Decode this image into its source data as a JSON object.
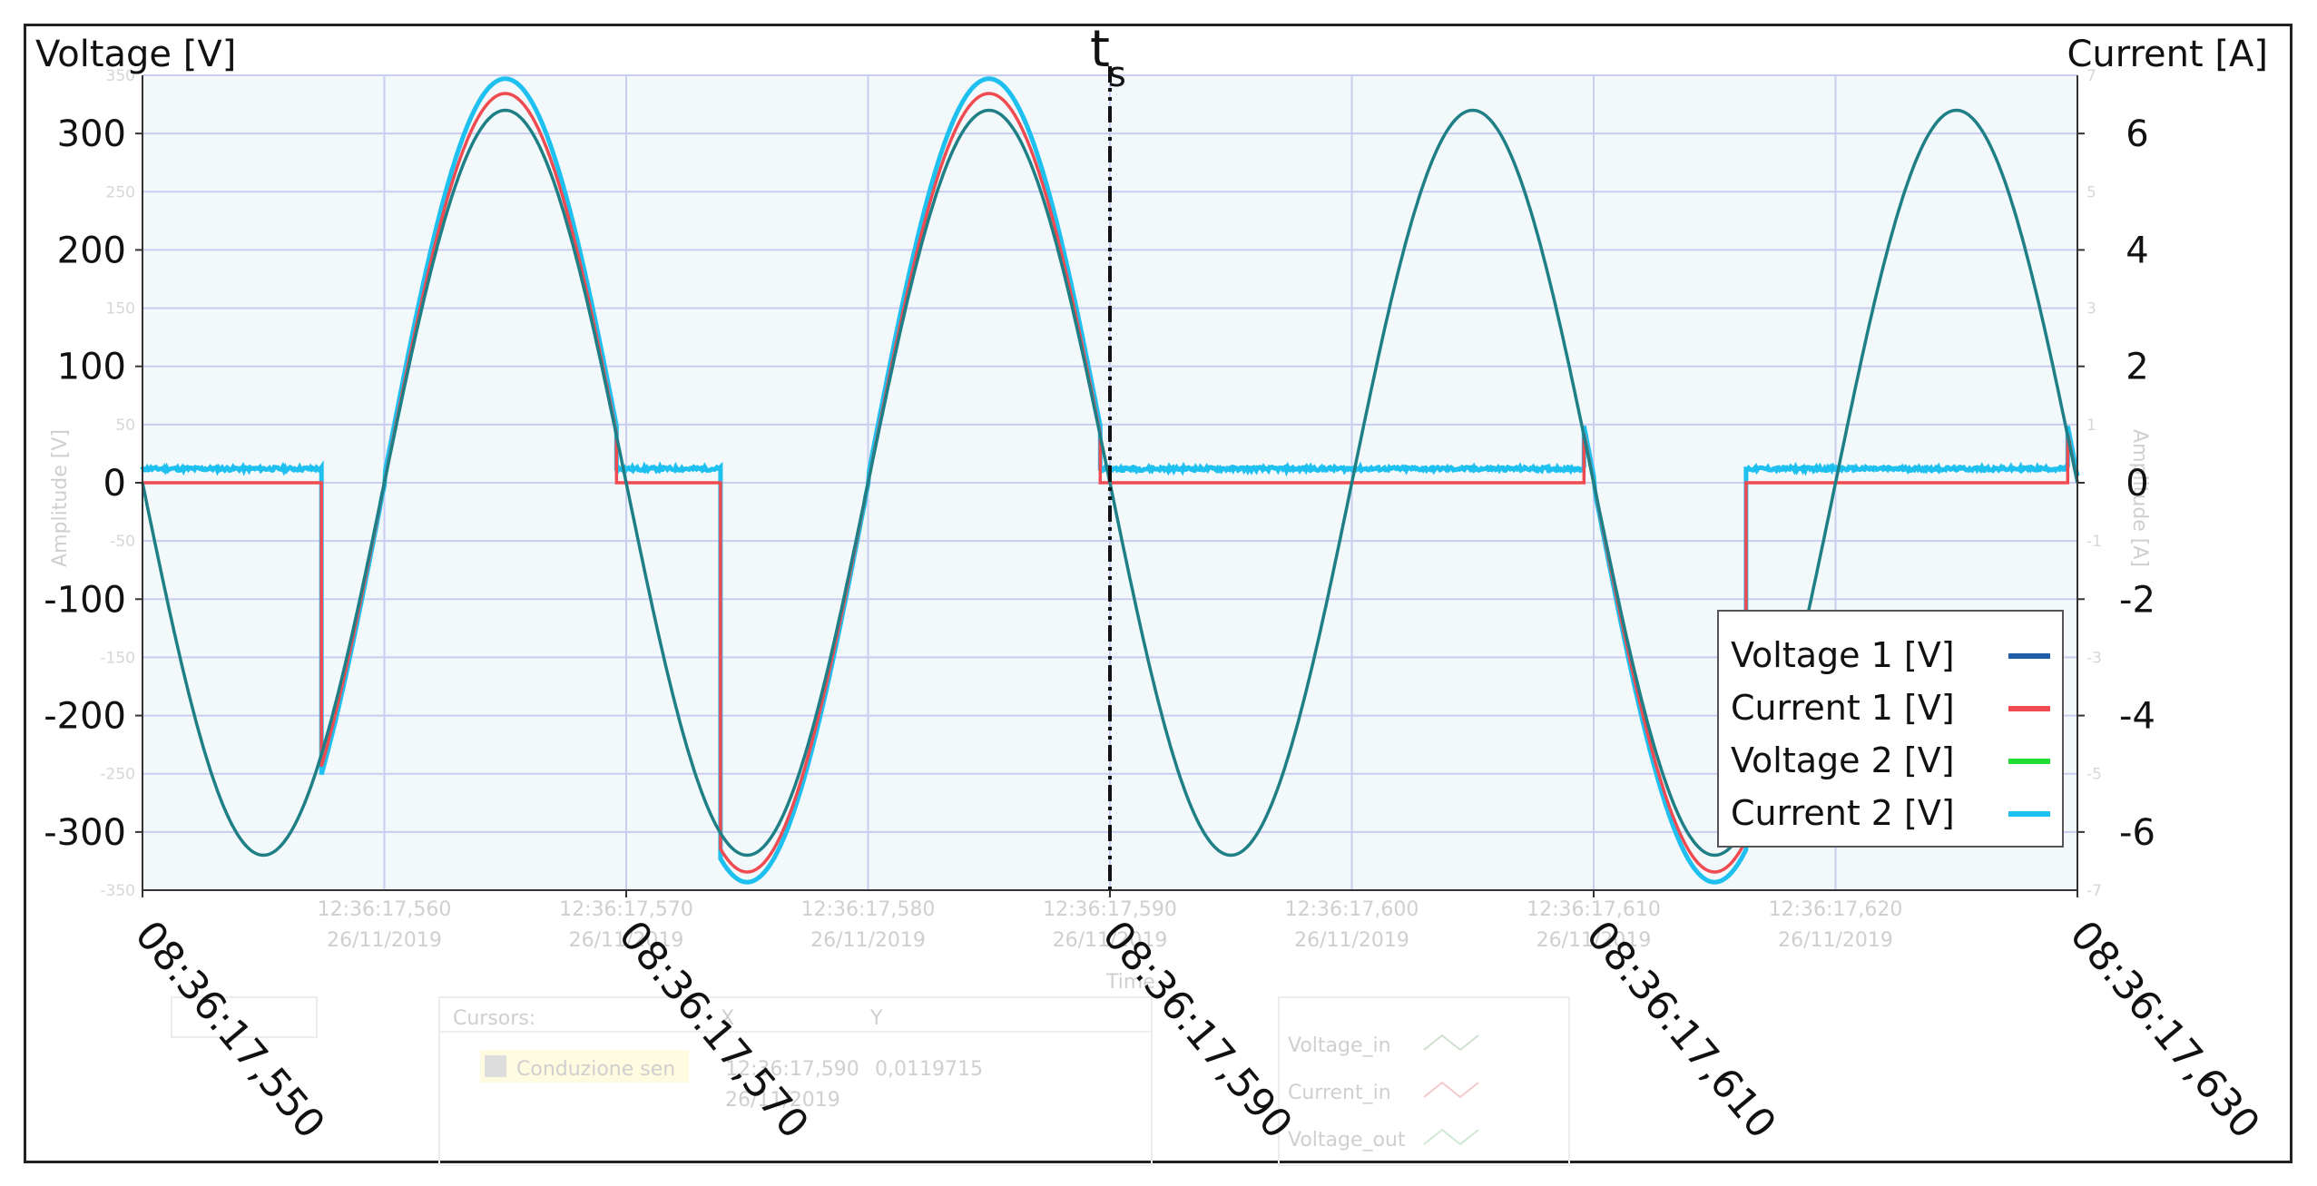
{
  "chart_data": {
    "type": "line",
    "y_left_label": "Voltage [V]",
    "y_right_label": "Current [A]",
    "y_left_ticks": [
      300,
      200,
      100,
      0,
      -100,
      -200,
      -300
    ],
    "y_left_ticks_labels": [
      "300",
      "200",
      "100",
      "0",
      "-100",
      "-200",
      "-300"
    ],
    "y_left_range": [
      -350,
      350
    ],
    "y_right_ticks_labels": [
      "6",
      "4",
      "2",
      "0",
      "-2",
      "-4",
      "-6"
    ],
    "y_right_ticks": [
      6,
      4,
      2,
      0,
      -2,
      -4,
      -6
    ],
    "y_right_range": [
      -7,
      7
    ],
    "y_left_minor_labels": [
      "350",
      "250",
      "150",
      "50",
      "-50",
      "-150",
      "-250",
      "-350"
    ],
    "y_right_minor_labels": [
      "7",
      "5",
      "3",
      "1",
      "-1",
      "-3",
      "-5",
      "-7"
    ],
    "x_range_ms": [
      550,
      630
    ],
    "x_ticks_labels": [
      "08:36:17,550",
      "08:36:17,570",
      "08:36:17,590",
      "08:36:17,610",
      "08:36:17,630"
    ],
    "x_ticks_ms": [
      550,
      570,
      590,
      610,
      630
    ],
    "x_minor_ms": [
      560,
      580,
      600,
      620
    ],
    "x_ghost_labels_top": [
      "12:36:17,560",
      "12:36:17,570",
      "12:36:17,580",
      "12:36:17,590",
      "12:36:17,600",
      "12:36:17,610",
      "12:36:17,620"
    ],
    "x_ghost_labels_bottom": [
      "26/11/2019",
      "26/11/2019",
      "26/11/2019",
      "26/11/2019",
      "26/11/2019",
      "26/11/2019",
      "26/11/2019"
    ],
    "marker": {
      "label": "t",
      "subscript": "s",
      "x_ms": 590
    },
    "grid": true,
    "legend_position": "right",
    "series": [
      {
        "name": "Voltage 1 [V]",
        "color": "#1f5fa8",
        "description_params": {
          "amplitude_V": 320,
          "frequency_Hz": 50,
          "phase_zero_ms": 550
        }
      },
      {
        "name": "Current 1 [V]",
        "color": "#f04b50",
        "segments": [
          {
            "x_ms": [
              550,
              557.4
            ],
            "value_V": 0
          },
          {
            "x_ms": [
              557.4,
              569.6
            ],
            "scale": 1.045
          },
          {
            "x_ms": [
              569.6,
              573.9
            ],
            "value_V": 0
          },
          {
            "x_ms": [
              573.9,
              589.6
            ],
            "scale": 1.045
          },
          {
            "x_ms": [
              589.6,
              609.6
            ],
            "value_V": 0
          },
          {
            "x_ms": [
              609.6,
              616.3
            ],
            "scale": 1.045
          },
          {
            "x_ms": [
              616.3,
              629.6
            ],
            "value_V": 0
          },
          {
            "x_ms": [
              629.6,
              630
            ],
            "scale": 1.045
          }
        ]
      },
      {
        "name": "Voltage 2 [V]",
        "color": "#22dd33"
      },
      {
        "name": "Current 2 [V]",
        "color": "#1ec0f0",
        "offset_V": 12
      }
    ],
    "ghost_ui": {
      "cursors_label": "Cursors",
      "cursor_name": "Conduzione sen",
      "cursor_x": "12:36:17,590",
      "cursor_y": "0,0119715",
      "cursor_date": "26/11/2019",
      "col_x": "X",
      "col_y": "Y",
      "axis_time": "Time",
      "axis_amp_left": "Amplitude [V]",
      "axis_amp_right": "Amplitude [A]",
      "legend_items": [
        "Voltage_in",
        "Current_in",
        "Voltage_out"
      ]
    }
  }
}
